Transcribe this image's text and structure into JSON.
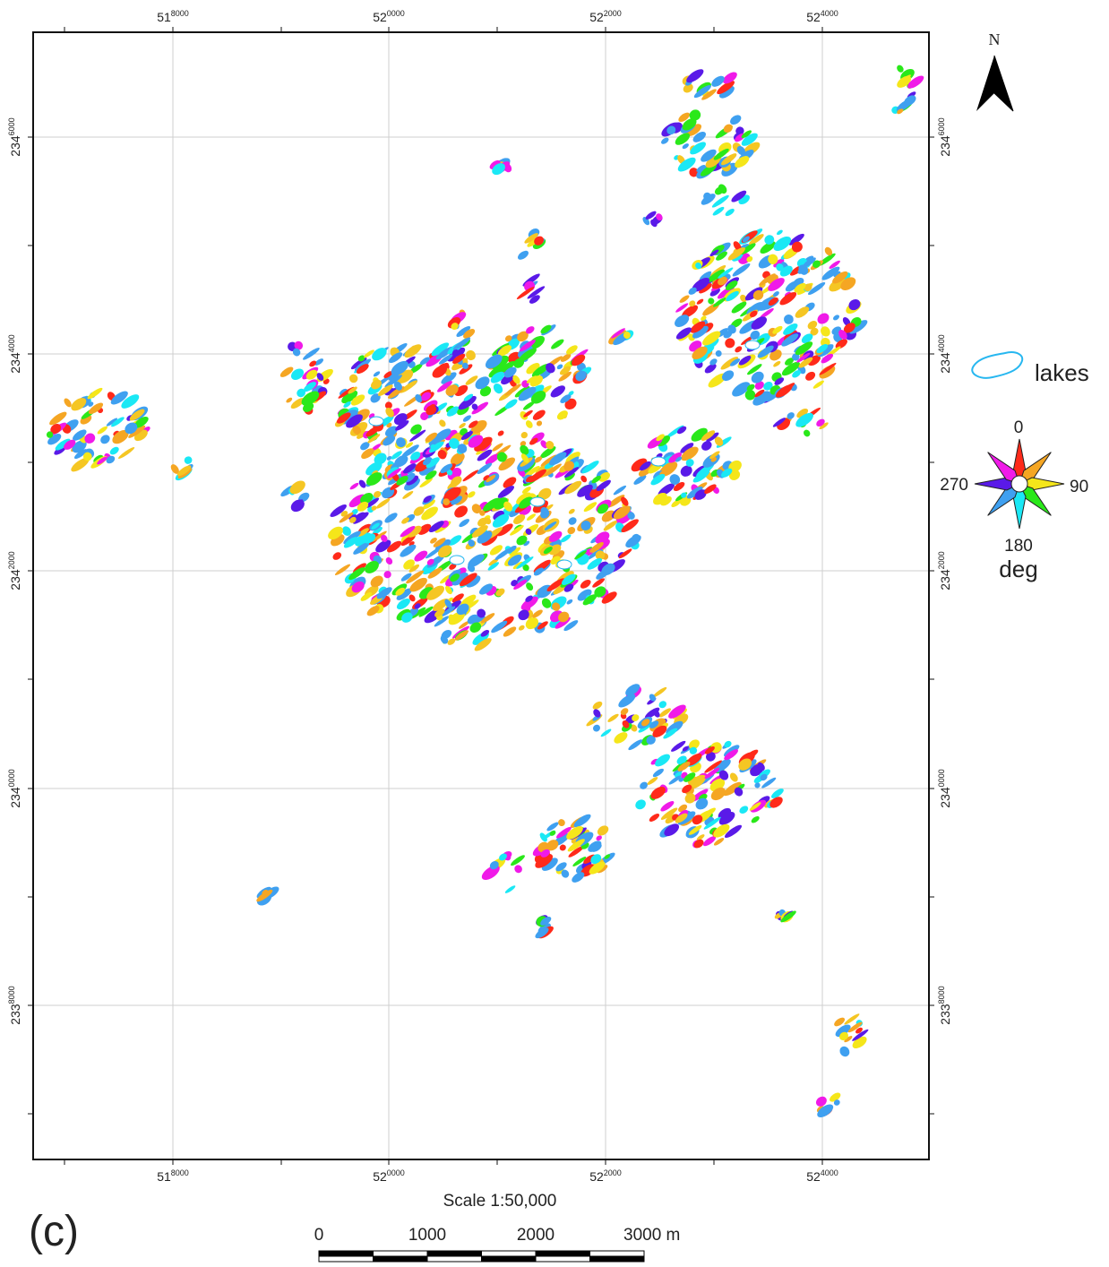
{
  "map": {
    "panel_label": "(c)",
    "x_labels": [
      {
        "main": "51",
        "sup": "8000"
      },
      {
        "main": "52",
        "sup": "0000"
      },
      {
        "main": "52",
        "sup": "2000"
      },
      {
        "main": "52",
        "sup": "4000"
      }
    ],
    "y_labels": [
      {
        "main": "234",
        "sup": "6000"
      },
      {
        "main": "234",
        "sup": "4000"
      },
      {
        "main": "234",
        "sup": "2000"
      },
      {
        "main": "234",
        "sup": "0000"
      },
      {
        "main": "233",
        "sup": "8000"
      }
    ],
    "north": "N",
    "legend": {
      "lakes": "lakes",
      "compass": {
        "north": "0",
        "east": "90",
        "south": "180",
        "west": "270",
        "unit": "deg"
      }
    },
    "scale": {
      "title": "Scale 1:50,000",
      "labels": [
        "0",
        "1000",
        "2000",
        "3000 m"
      ]
    }
  }
}
